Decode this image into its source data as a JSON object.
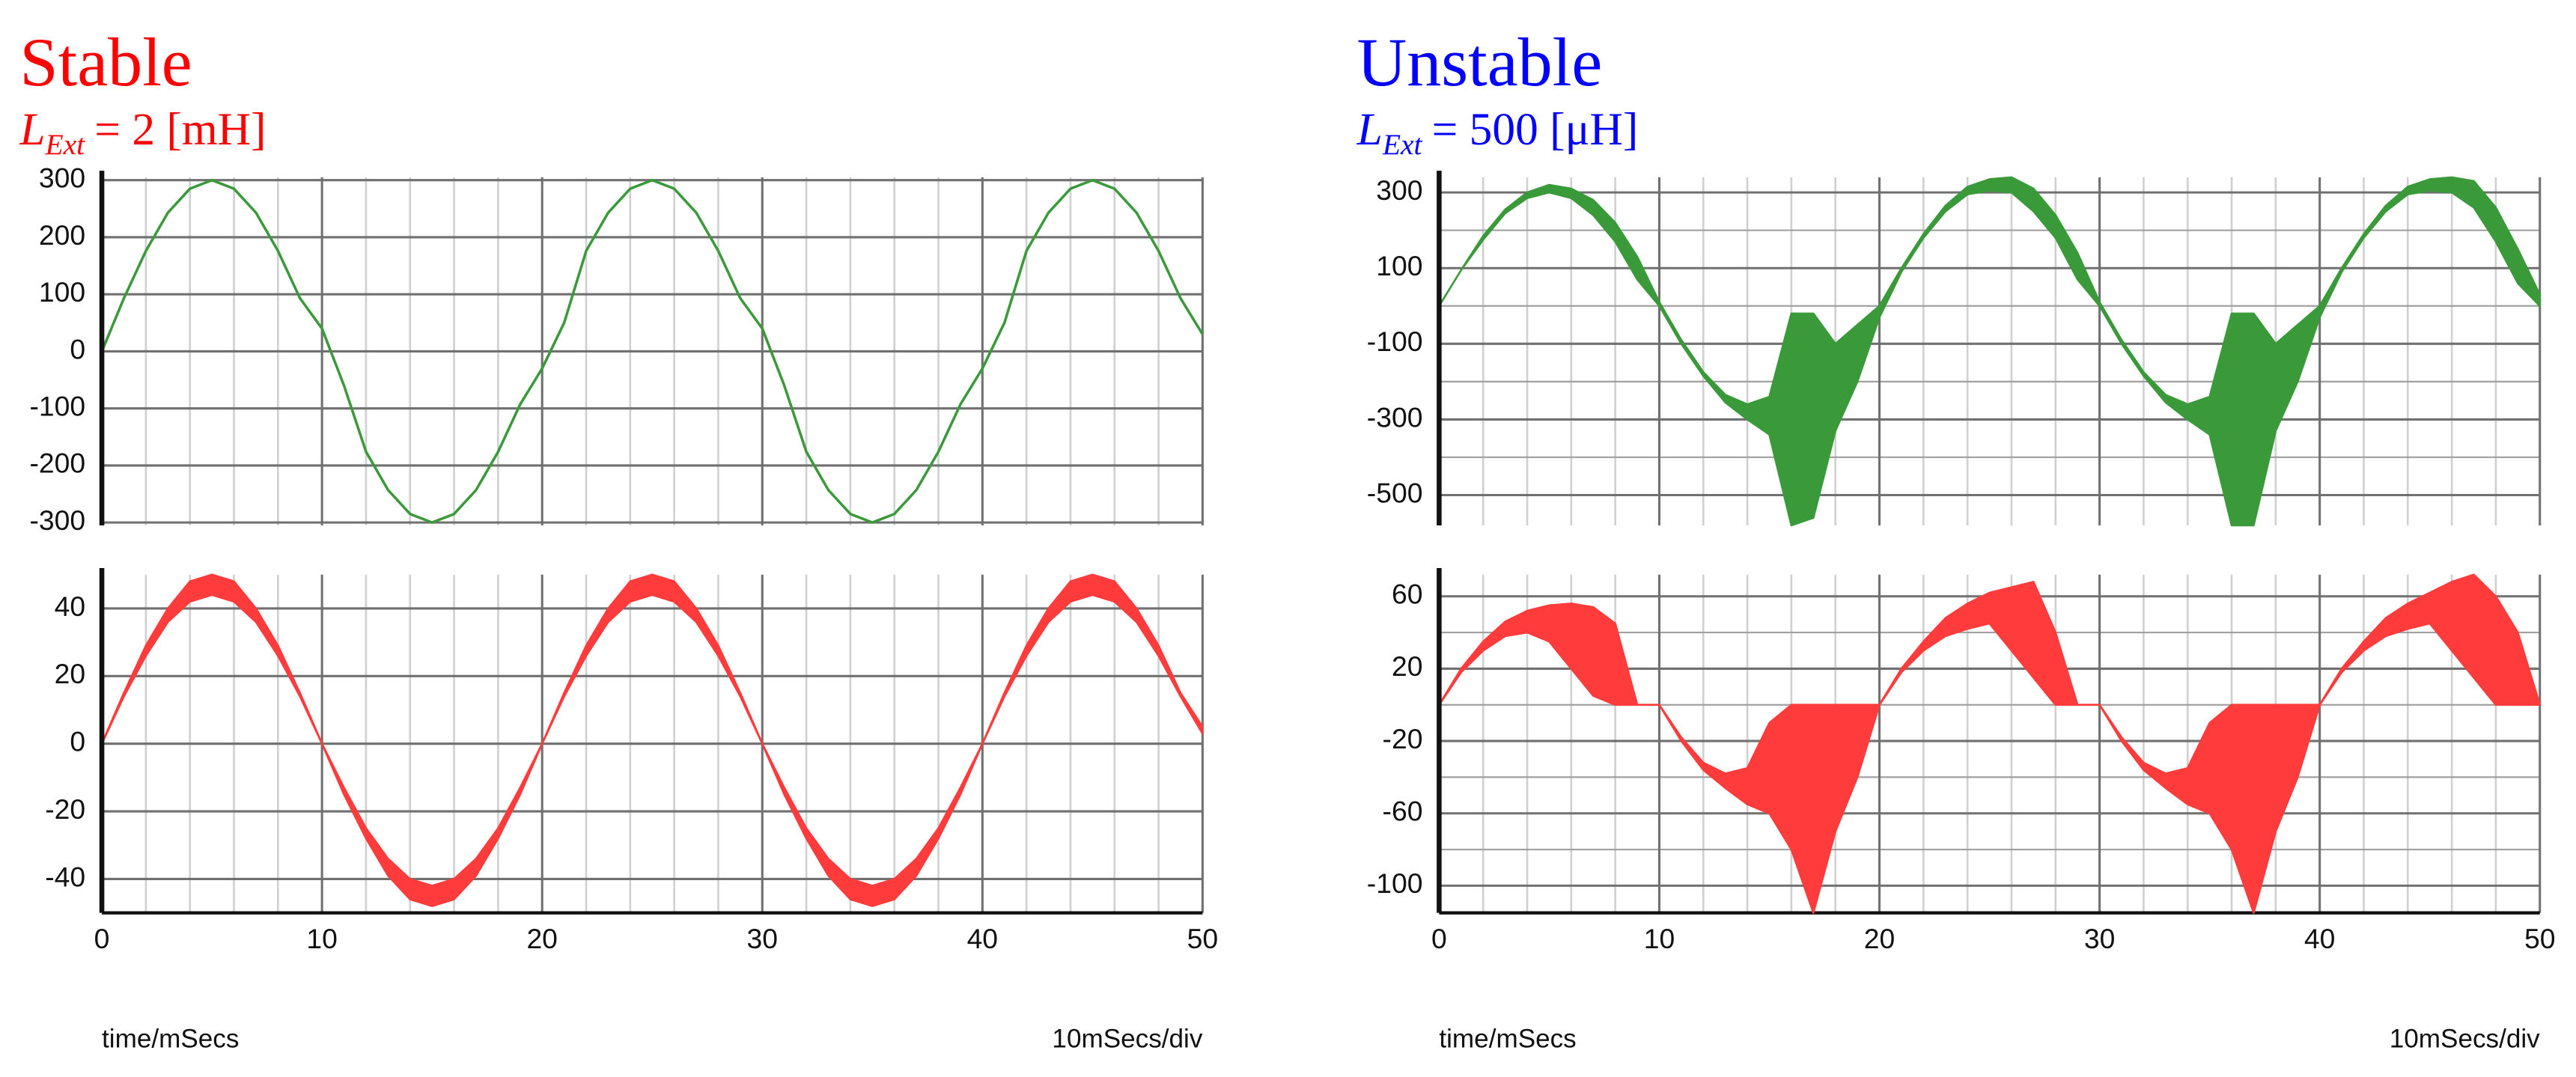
{
  "chart_data": [
    {
      "type": "line",
      "title": "Stable",
      "title_color": "#ff0000",
      "subtitle": {
        "symbol": "L",
        "subscript": "Ext",
        "text": "= 2 [mH]"
      },
      "x": [
        0,
        1,
        2,
        3,
        4,
        5,
        6,
        7,
        8,
        9,
        10,
        11,
        12,
        13,
        14,
        15,
        16,
        17,
        18,
        19,
        20,
        21,
        22,
        23,
        24,
        25,
        26,
        27,
        28,
        29,
        30,
        31,
        32,
        33,
        34,
        35,
        36,
        37,
        38,
        39,
        40,
        41,
        42,
        43,
        44,
        45,
        46,
        47,
        48,
        49,
        50
      ],
      "series": [
        {
          "color": "#3a9a3a",
          "values": [
            0,
            93,
            176,
            243,
            285,
            300,
            285,
            243,
            176,
            93,
            40,
            -60,
            -176,
            -243,
            -285,
            -300,
            -285,
            -243,
            -176,
            -93,
            -30,
            50,
            176,
            243,
            285,
            300,
            285,
            243,
            176,
            93,
            40,
            -60,
            -176,
            -243,
            -285,
            -300,
            -285,
            -243,
            -176,
            -93,
            -30,
            50,
            176,
            243,
            285,
            300,
            285,
            243,
            176,
            93,
            30
          ]
        }
      ],
      "xlim": [
        0,
        50
      ],
      "xticks": [
        0,
        10,
        20,
        30,
        40,
        50
      ],
      "xtick_labels": false,
      "minor_xticks": [
        2,
        4,
        6,
        8,
        12,
        14,
        16,
        18,
        22,
        24,
        26,
        28,
        32,
        34,
        36,
        38,
        42,
        44,
        46,
        48
      ],
      "ylim": [
        -305,
        305
      ],
      "yticks": [
        300,
        200,
        100,
        0,
        -100,
        -200,
        -300
      ],
      "grid": true
    },
    {
      "type": "band",
      "x": [
        0,
        1,
        2,
        3,
        4,
        5,
        6,
        7,
        8,
        9,
        10,
        11,
        12,
        13,
        14,
        15,
        16,
        17,
        18,
        19,
        20,
        21,
        22,
        23,
        24,
        25,
        26,
        27,
        28,
        29,
        30,
        31,
        32,
        33,
        34,
        35,
        36,
        37,
        38,
        39,
        40,
        41,
        42,
        43,
        44,
        45,
        46,
        47,
        48,
        49,
        50
      ],
      "series": [
        {
          "color": "#ff3b3b",
          "values": [
            0,
            15,
            29,
            40,
            48,
            50,
            48,
            40,
            29,
            15,
            0,
            -13,
            -25,
            -34,
            -40,
            -42,
            -40,
            -34,
            -25,
            -13,
            0,
            15,
            29,
            40,
            48,
            50,
            48,
            40,
            29,
            15,
            0,
            -13,
            -25,
            -34,
            -40,
            -42,
            -40,
            -34,
            -25,
            -13,
            0,
            15,
            29,
            40,
            48,
            50,
            48,
            40,
            29,
            15,
            5
          ]
        },
        {
          "color": "#ff3b3b",
          "values": [
            0,
            14,
            26,
            36,
            42,
            44,
            42,
            36,
            26,
            14,
            0,
            -15,
            -28,
            -39,
            -46,
            -48,
            -46,
            -39,
            -28,
            -15,
            0,
            14,
            26,
            36,
            42,
            44,
            42,
            36,
            26,
            14,
            0,
            -15,
            -28,
            -39,
            -46,
            -48,
            -46,
            -39,
            -28,
            -15,
            0,
            14,
            26,
            36,
            42,
            44,
            42,
            36,
            26,
            14,
            3
          ]
        }
      ],
      "xlim": [
        0,
        50
      ],
      "xticks": [
        0,
        10,
        20,
        30,
        40,
        50
      ],
      "xtick_labels": true,
      "minor_xticks": [
        2,
        4,
        6,
        8,
        12,
        14,
        16,
        18,
        22,
        24,
        26,
        28,
        32,
        34,
        36,
        38,
        42,
        44,
        46,
        48
      ],
      "ylim": [
        -50,
        50
      ],
      "yticks": [
        40,
        20,
        0,
        -20,
        -40
      ],
      "grid": true,
      "xlabel": "time/mSecs",
      "xnote": "10mSecs/div"
    },
    {
      "type": "band",
      "title": "Unstable",
      "title_color": "#0000ff",
      "subtitle": {
        "symbol": "L",
        "subscript": "Ext",
        "text": "= 500 [μH]"
      },
      "x": [
        0,
        1,
        2,
        3,
        4,
        5,
        6,
        7,
        8,
        9,
        10,
        11,
        12,
        13,
        14,
        15,
        16,
        17,
        18,
        19,
        20,
        21,
        22,
        23,
        24,
        25,
        26,
        27,
        28,
        29,
        30,
        31,
        32,
        33,
        34,
        35,
        36,
        37,
        38,
        39,
        40,
        41,
        42,
        43,
        44,
        45,
        46,
        47,
        48,
        49,
        50
      ],
      "series": [
        {
          "color": "#3a9a3a",
          "values": [
            0,
            95,
            185,
            255,
            300,
            320,
            310,
            280,
            220,
            130,
            10,
            -90,
            -175,
            -235,
            -260,
            -240,
            -20,
            -20,
            -100,
            -50,
            0,
            100,
            190,
            265,
            315,
            335,
            340,
            310,
            240,
            140,
            10,
            -90,
            -175,
            -235,
            -260,
            -240,
            -20,
            -20,
            -100,
            -50,
            0,
            100,
            190,
            265,
            315,
            335,
            340,
            330,
            260,
            150,
            30
          ]
        },
        {
          "color": "#3a9a3a",
          "values": [
            0,
            95,
            175,
            245,
            285,
            300,
            285,
            240,
            170,
            70,
            0,
            -100,
            -185,
            -255,
            -300,
            -340,
            -580,
            -560,
            -330,
            -200,
            -30,
            90,
            180,
            250,
            295,
            305,
            300,
            250,
            180,
            70,
            0,
            -100,
            -185,
            -255,
            -300,
            -340,
            -580,
            -580,
            -330,
            -200,
            -30,
            90,
            180,
            250,
            295,
            305,
            300,
            260,
            170,
            60,
            0
          ]
        }
      ],
      "xlim": [
        0,
        50
      ],
      "xticks": [
        0,
        10,
        20,
        30,
        40,
        50
      ],
      "xtick_labels": false,
      "minor_xticks": [
        2,
        4,
        6,
        8,
        12,
        14,
        16,
        18,
        22,
        24,
        26,
        28,
        32,
        34,
        36,
        38,
        42,
        44,
        46,
        48
      ],
      "ylim": [
        -580,
        340
      ],
      "yticks": [
        300,
        100,
        -100,
        -300,
        -500
      ],
      "minor_yticks": [
        200,
        0,
        -200,
        -400
      ],
      "grid": true
    },
    {
      "type": "band",
      "x": [
        0,
        1,
        2,
        3,
        4,
        5,
        6,
        7,
        8,
        9,
        10,
        11,
        12,
        13,
        14,
        15,
        16,
        17,
        18,
        19,
        20,
        21,
        22,
        23,
        24,
        25,
        26,
        27,
        28,
        29,
        30,
        31,
        32,
        33,
        34,
        35,
        36,
        37,
        38,
        39,
        40,
        41,
        42,
        43,
        44,
        45,
        46,
        47,
        48,
        49,
        50
      ],
      "series": [
        {
          "color": "#ff3b3b",
          "values": [
            0,
            20,
            35,
            46,
            52,
            55,
            56,
            54,
            45,
            0,
            0,
            -18,
            -32,
            -38,
            -35,
            -10,
            0,
            0,
            0,
            0,
            0,
            20,
            35,
            48,
            56,
            62,
            65,
            68,
            40,
            0,
            0,
            -18,
            -32,
            -38,
            -35,
            -10,
            0,
            0,
            0,
            0,
            0,
            20,
            35,
            48,
            56,
            62,
            68,
            72,
            60,
            40,
            0
          ]
        },
        {
          "color": "#ff3b3b",
          "values": [
            0,
            18,
            30,
            38,
            40,
            35,
            20,
            5,
            0,
            0,
            0,
            -20,
            -36,
            -46,
            -55,
            -60,
            -80,
            -115,
            -70,
            -40,
            0,
            18,
            30,
            38,
            42,
            45,
            30,
            15,
            0,
            0,
            0,
            -20,
            -36,
            -46,
            -55,
            -60,
            -80,
            -115,
            -70,
            -40,
            0,
            18,
            30,
            38,
            42,
            45,
            30,
            15,
            0,
            0,
            0
          ]
        }
      ],
      "xlim": [
        0,
        50
      ],
      "xticks": [
        0,
        10,
        20,
        30,
        40,
        50
      ],
      "xtick_labels": true,
      "minor_xticks": [
        2,
        4,
        6,
        8,
        12,
        14,
        16,
        18,
        22,
        24,
        26,
        28,
        32,
        34,
        36,
        38,
        42,
        44,
        46,
        48
      ],
      "ylim": [
        -115,
        72
      ],
      "yticks": [
        60,
        20,
        -20,
        -60,
        -100
      ],
      "minor_yticks": [
        40,
        0,
        -40,
        -80
      ],
      "grid": true,
      "xlabel": "time/mSecs",
      "xnote": "10mSecs/div"
    }
  ]
}
